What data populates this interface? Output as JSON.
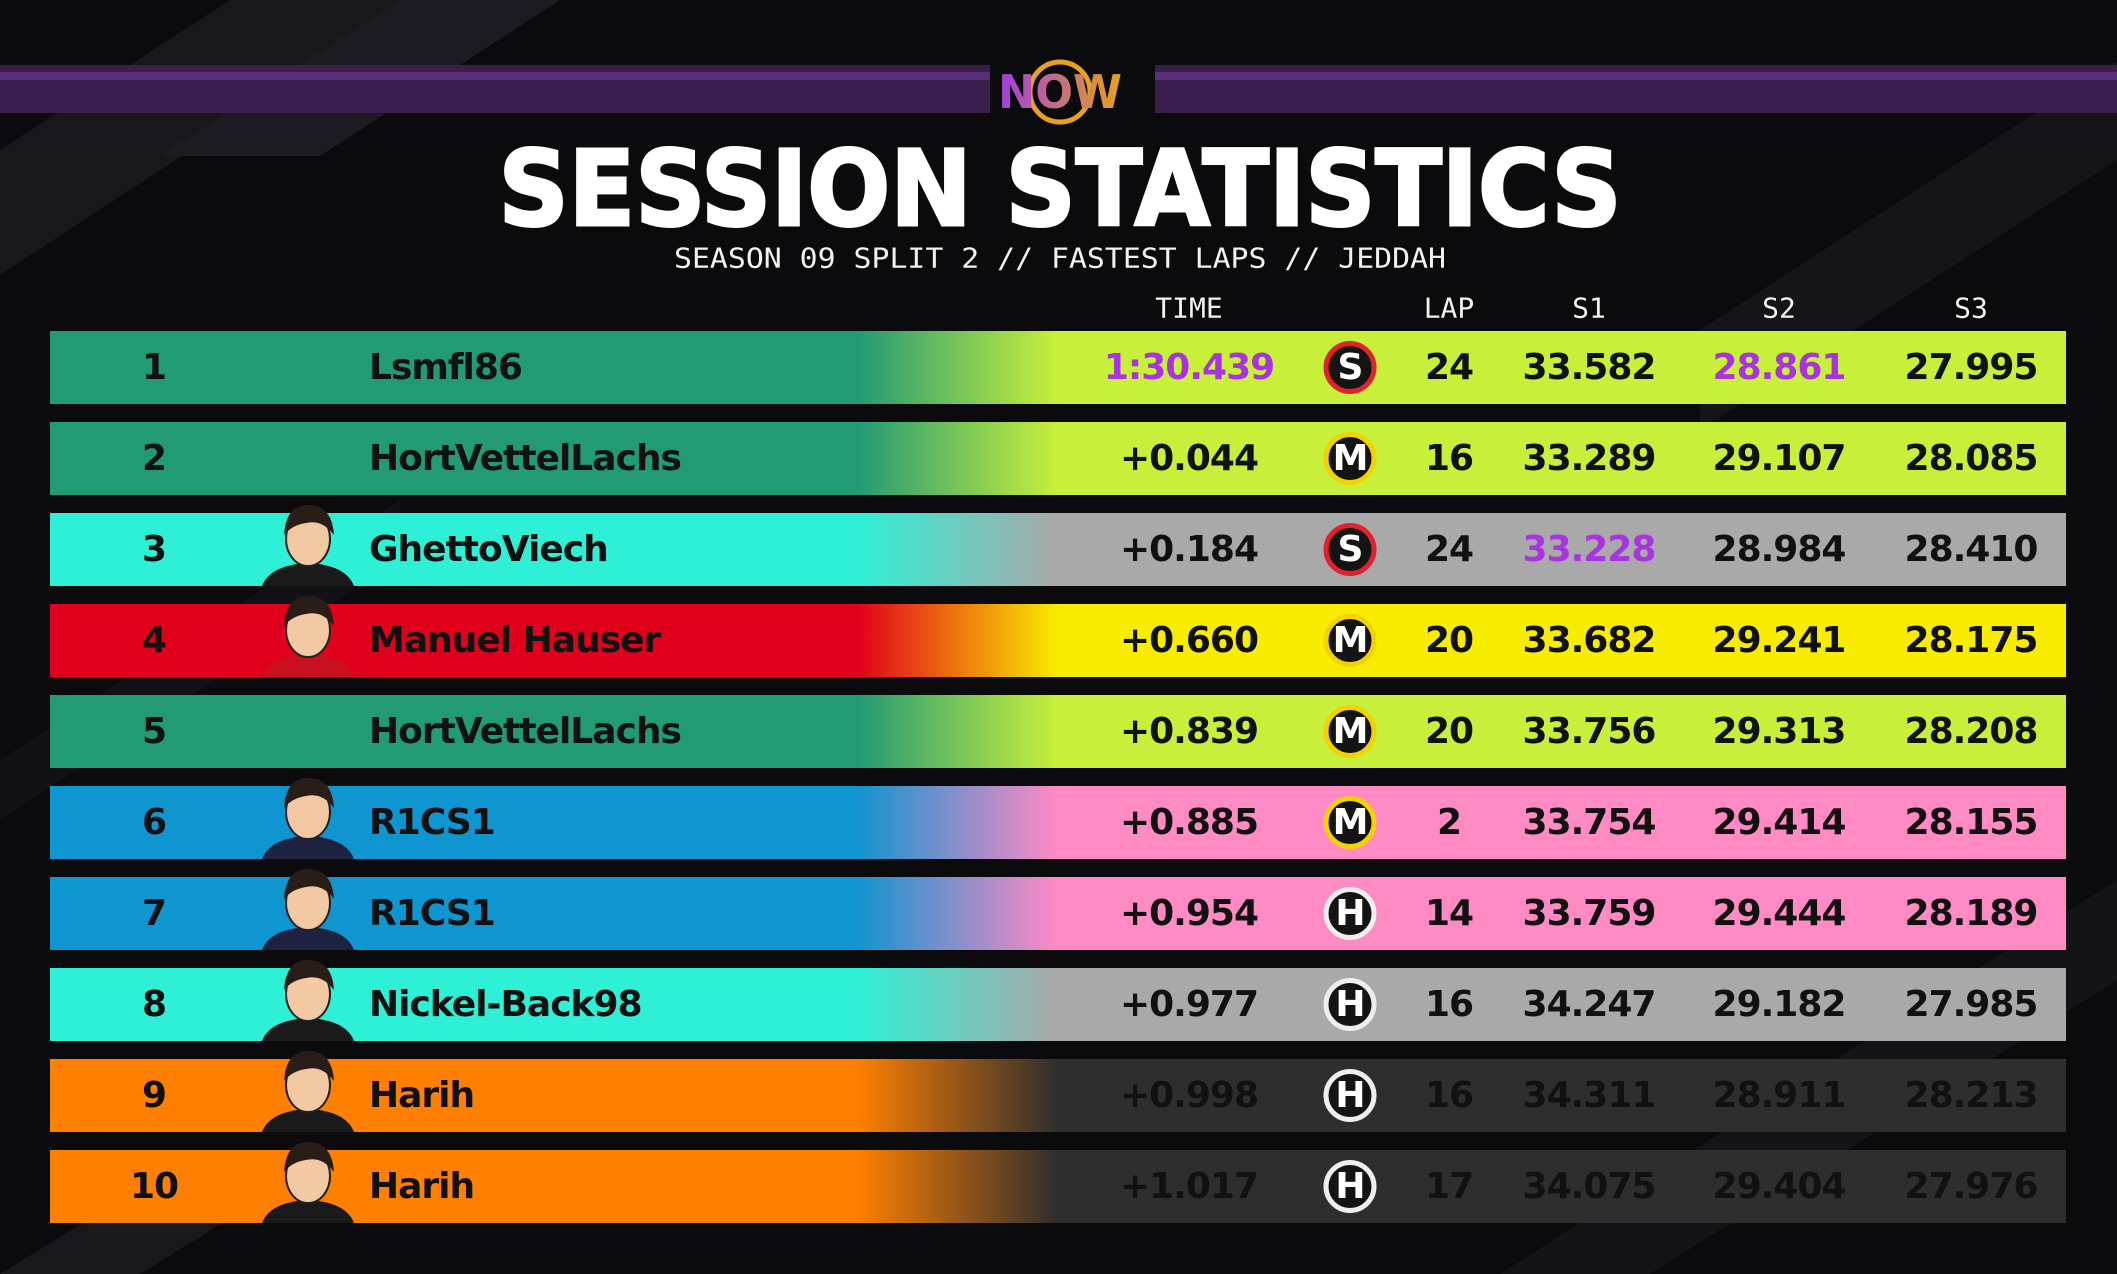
{
  "header": {
    "logo": "NOW",
    "title": "SESSION STATISTICS",
    "subtitle": "SEASON 09 SPLIT 2 // FASTEST LAPS // JEDDAH"
  },
  "table": {
    "columns": [
      "TIME",
      "LAP",
      "S1",
      "S2",
      "S3"
    ],
    "rows": [
      [
        "1",
        "Lsmfl86",
        "1:30.439",
        "S",
        "24",
        "33.582",
        "28.861",
        "27.995"
      ],
      [
        "2",
        "HortVettelLachs",
        "+0.044",
        "M",
        "16",
        "33.289",
        "29.107",
        "28.085"
      ],
      [
        "3",
        "GhettoViech",
        "+0.184",
        "S",
        "24",
        "33.228",
        "28.984",
        "28.410"
      ],
      [
        "4",
        "Manuel Hauser",
        "+0.660",
        "M",
        "20",
        "33.682",
        "29.241",
        "28.175"
      ],
      [
        "5",
        "HortVettelLachs",
        "+0.839",
        "M",
        "20",
        "33.756",
        "29.313",
        "28.208"
      ],
      [
        "6",
        "R1CS1",
        "+0.885",
        "M",
        "2",
        "33.754",
        "29.414",
        "28.155"
      ],
      [
        "7",
        "R1CS1",
        "+0.954",
        "H",
        "14",
        "33.759",
        "29.444",
        "28.189"
      ],
      [
        "8",
        "Nickel-Back98",
        "+0.977",
        "H",
        "16",
        "34.247",
        "29.182",
        "27.985"
      ],
      [
        "9",
        "Harih",
        "+0.998",
        "H",
        "16",
        "34.311",
        "28.911",
        "28.213"
      ],
      [
        "10",
        "Harih",
        "+1.017",
        "H",
        "17",
        "34.075",
        "29.404",
        "27.976"
      ]
    ]
  }
}
